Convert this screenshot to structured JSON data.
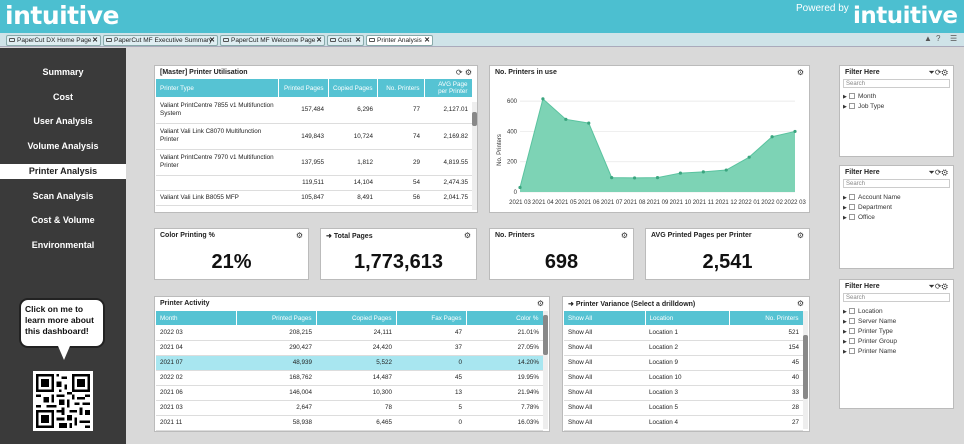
{
  "brand": {
    "logo_left": "intuitive",
    "powered_by": "Powered by",
    "logo_right": "intuitive"
  },
  "tabs": [
    {
      "label": "PaperCut DX Home Page"
    },
    {
      "label": "PaperCut MF Executive Summary"
    },
    {
      "label": "PaperCut MF Welcome Page"
    },
    {
      "label": "Cost"
    },
    {
      "label": "Printer Analysis",
      "active": true
    }
  ],
  "nav": [
    {
      "label": "Summary"
    },
    {
      "label": "Cost"
    },
    {
      "label": "User Analysis"
    },
    {
      "label": "Volume Analysis"
    },
    {
      "label": "Printer Analysis",
      "active": true
    },
    {
      "label": "Scan Analysis"
    },
    {
      "label": "Cost & Volume"
    },
    {
      "label": "Environmental"
    }
  ],
  "help_bubble": "Click on me to learn more about this dashboard!",
  "utilisation": {
    "title": "[Master] Printer Utilisation",
    "headers": [
      "Printer Type",
      "Printed Pages",
      "Copied Pages",
      "No. Printers",
      "AVG Page per Printer"
    ],
    "rows": [
      [
        "Valiant PrintCentre 7855 v1 Multifunction System",
        "157,484",
        "6,296",
        "77",
        "2,127.01"
      ],
      [
        "Valiant Vali Link C8070 Multifunction Printer",
        "149,843",
        "10,724",
        "74",
        "2,169.82"
      ],
      [
        "Valiant PrintCentre 7970 v1 Multifunction Printer",
        "137,955",
        "1,812",
        "29",
        "4,819.55"
      ],
      [
        "",
        "119,511",
        "14,104",
        "54",
        "2,474.35"
      ],
      [
        "Valiant Vali Link B8055 MFP",
        "105,847",
        "8,491",
        "56",
        "2,041.75"
      ]
    ]
  },
  "printers_chart": {
    "title": "No. Printers in use",
    "ylabel": "No. Printers",
    "yticks": [
      "600",
      "400",
      "200",
      "0"
    ]
  },
  "chart_data": {
    "type": "area",
    "title": "No. Printers in use",
    "xlabel": "",
    "ylabel": "No. Printers",
    "ylim": [
      0,
      700
    ],
    "x": [
      "2021 03",
      "2021 04",
      "2021 05",
      "2021 06",
      "2021 07",
      "2021 08",
      "2021 09",
      "2021 10",
      "2021 11",
      "2021 12",
      "2022 01",
      "2022 02",
      "2022 03"
    ],
    "values": [
      30,
      615,
      480,
      455,
      95,
      93,
      95,
      125,
      133,
      145,
      230,
      365,
      400
    ],
    "color": "#7dd3b5"
  },
  "kpis": [
    {
      "title": "Color Printing %",
      "value": "21%"
    },
    {
      "title": "Total Pages",
      "value": "1,773,613"
    },
    {
      "title": "No. Printers",
      "value": "698"
    },
    {
      "title": "AVG Printed Pages per Printer",
      "value": "2,541"
    }
  ],
  "activity": {
    "title": "Printer Activity",
    "headers": [
      "Month",
      "Printed Pages",
      "Copied Pages",
      "Fax Pages",
      "Color %"
    ],
    "rows": [
      [
        "2022 03",
        "208,215",
        "24,111",
        "47",
        "21.01%"
      ],
      [
        "2021 04",
        "290,427",
        "24,420",
        "37",
        "27.05%"
      ],
      [
        "2021 07",
        "48,939",
        "5,522",
        "0",
        "14.20%"
      ],
      [
        "2022 02",
        "168,762",
        "14,487",
        "45",
        "19.95%"
      ],
      [
        "2021 06",
        "146,004",
        "10,300",
        "13",
        "21.94%"
      ],
      [
        "2021 03",
        "2,647",
        "78",
        "5",
        "7.78%"
      ],
      [
        "2021 11",
        "58,938",
        "6,465",
        "0",
        "16.03%"
      ]
    ]
  },
  "variance": {
    "title": "Printer Variance (Select a drilldown)",
    "headers": [
      "Show All",
      "Location",
      "No. Printers"
    ],
    "rows": [
      [
        "Show All",
        "Location 1",
        "521"
      ],
      [
        "Show All",
        "Location 2",
        "154"
      ],
      [
        "Show All",
        "Location 9",
        "45"
      ],
      [
        "Show All",
        "Location 10",
        "40"
      ],
      [
        "Show All",
        "Location 3",
        "33"
      ],
      [
        "Show All",
        "Location 5",
        "28"
      ],
      [
        "Show All",
        "Location 4",
        "27"
      ]
    ]
  },
  "filters": [
    {
      "title": "Filter Here",
      "search": "Search",
      "items": [
        "Month",
        "Job Type"
      ]
    },
    {
      "title": "Filter Here",
      "search": "Search",
      "items": [
        "Account Name",
        "Department",
        "Office"
      ]
    },
    {
      "title": "Filter Here",
      "search": "Search",
      "items": [
        "Location",
        "Server Name",
        "Printer Type",
        "Printer Group",
        "Printer Name"
      ]
    }
  ]
}
